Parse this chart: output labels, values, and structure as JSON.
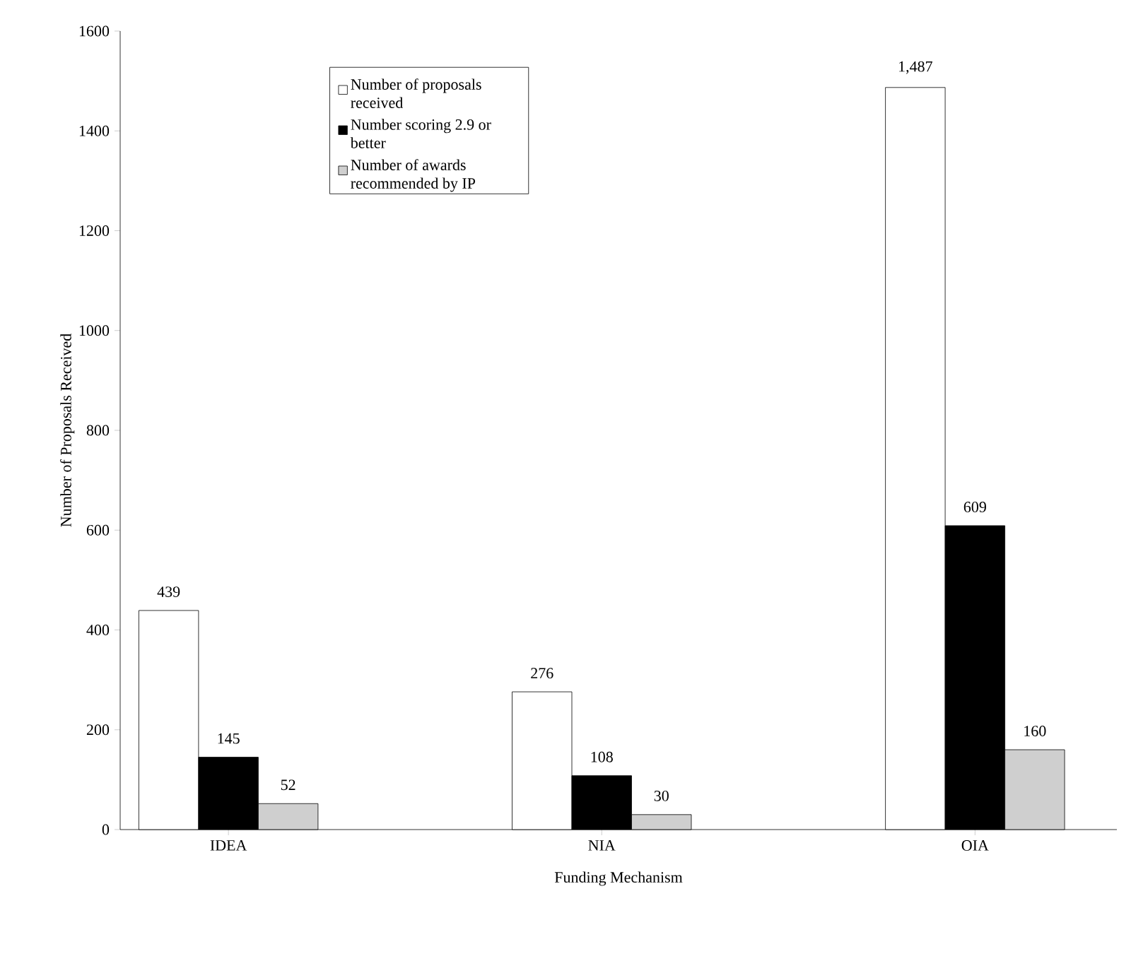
{
  "chart_data": {
    "type": "bar",
    "xlabel": "Funding Mechanism",
    "ylabel": "Number of Proposals Received",
    "categories": [
      "IDEA",
      "NIA",
      "OIA"
    ],
    "series": [
      {
        "name": "Number of proposals received",
        "color": "#ffffff",
        "values": [
          439,
          276,
          1487
        ],
        "value_labels": [
          "439",
          "276",
          "1,487"
        ]
      },
      {
        "name": "Number scoring 2.9 or better",
        "color": "#000000",
        "values": [
          145,
          108,
          609
        ],
        "value_labels": [
          "145",
          "108",
          "609"
        ]
      },
      {
        "name": "Number of awards recommended by IP",
        "color": "#cfcfcf",
        "values": [
          52,
          30,
          160
        ],
        "value_labels": [
          "52",
          "30",
          "160"
        ]
      }
    ],
    "ylim": [
      0,
      1600
    ],
    "yticks": [
      0,
      200,
      400,
      600,
      800,
      1000,
      1200,
      1400,
      1600
    ],
    "grid": false,
    "legend": "top"
  }
}
